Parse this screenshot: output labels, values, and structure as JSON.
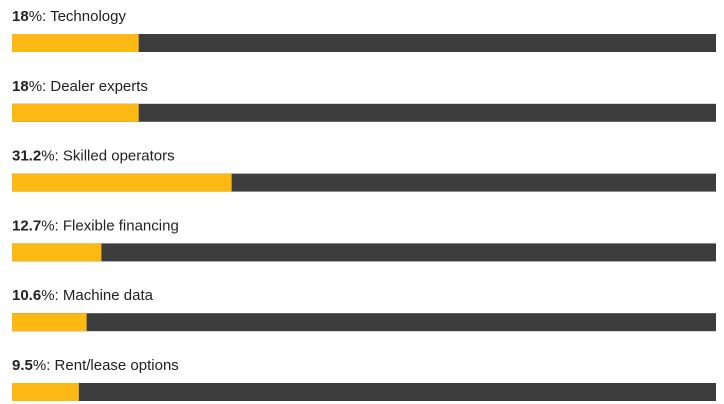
{
  "chart_data": {
    "type": "progress",
    "categories": [
      "Technology",
      "Dealer experts",
      "Skilled operators",
      "Flexible financing",
      "Machine data",
      "Rent/lease options"
    ],
    "values": [
      18,
      18,
      31.2,
      12.7,
      10.6,
      9.5
    ],
    "value_suffix": "%: ",
    "xlim": [
      0,
      100
    ],
    "color": "#fdb913",
    "track_color": "#3d3d3d"
  }
}
